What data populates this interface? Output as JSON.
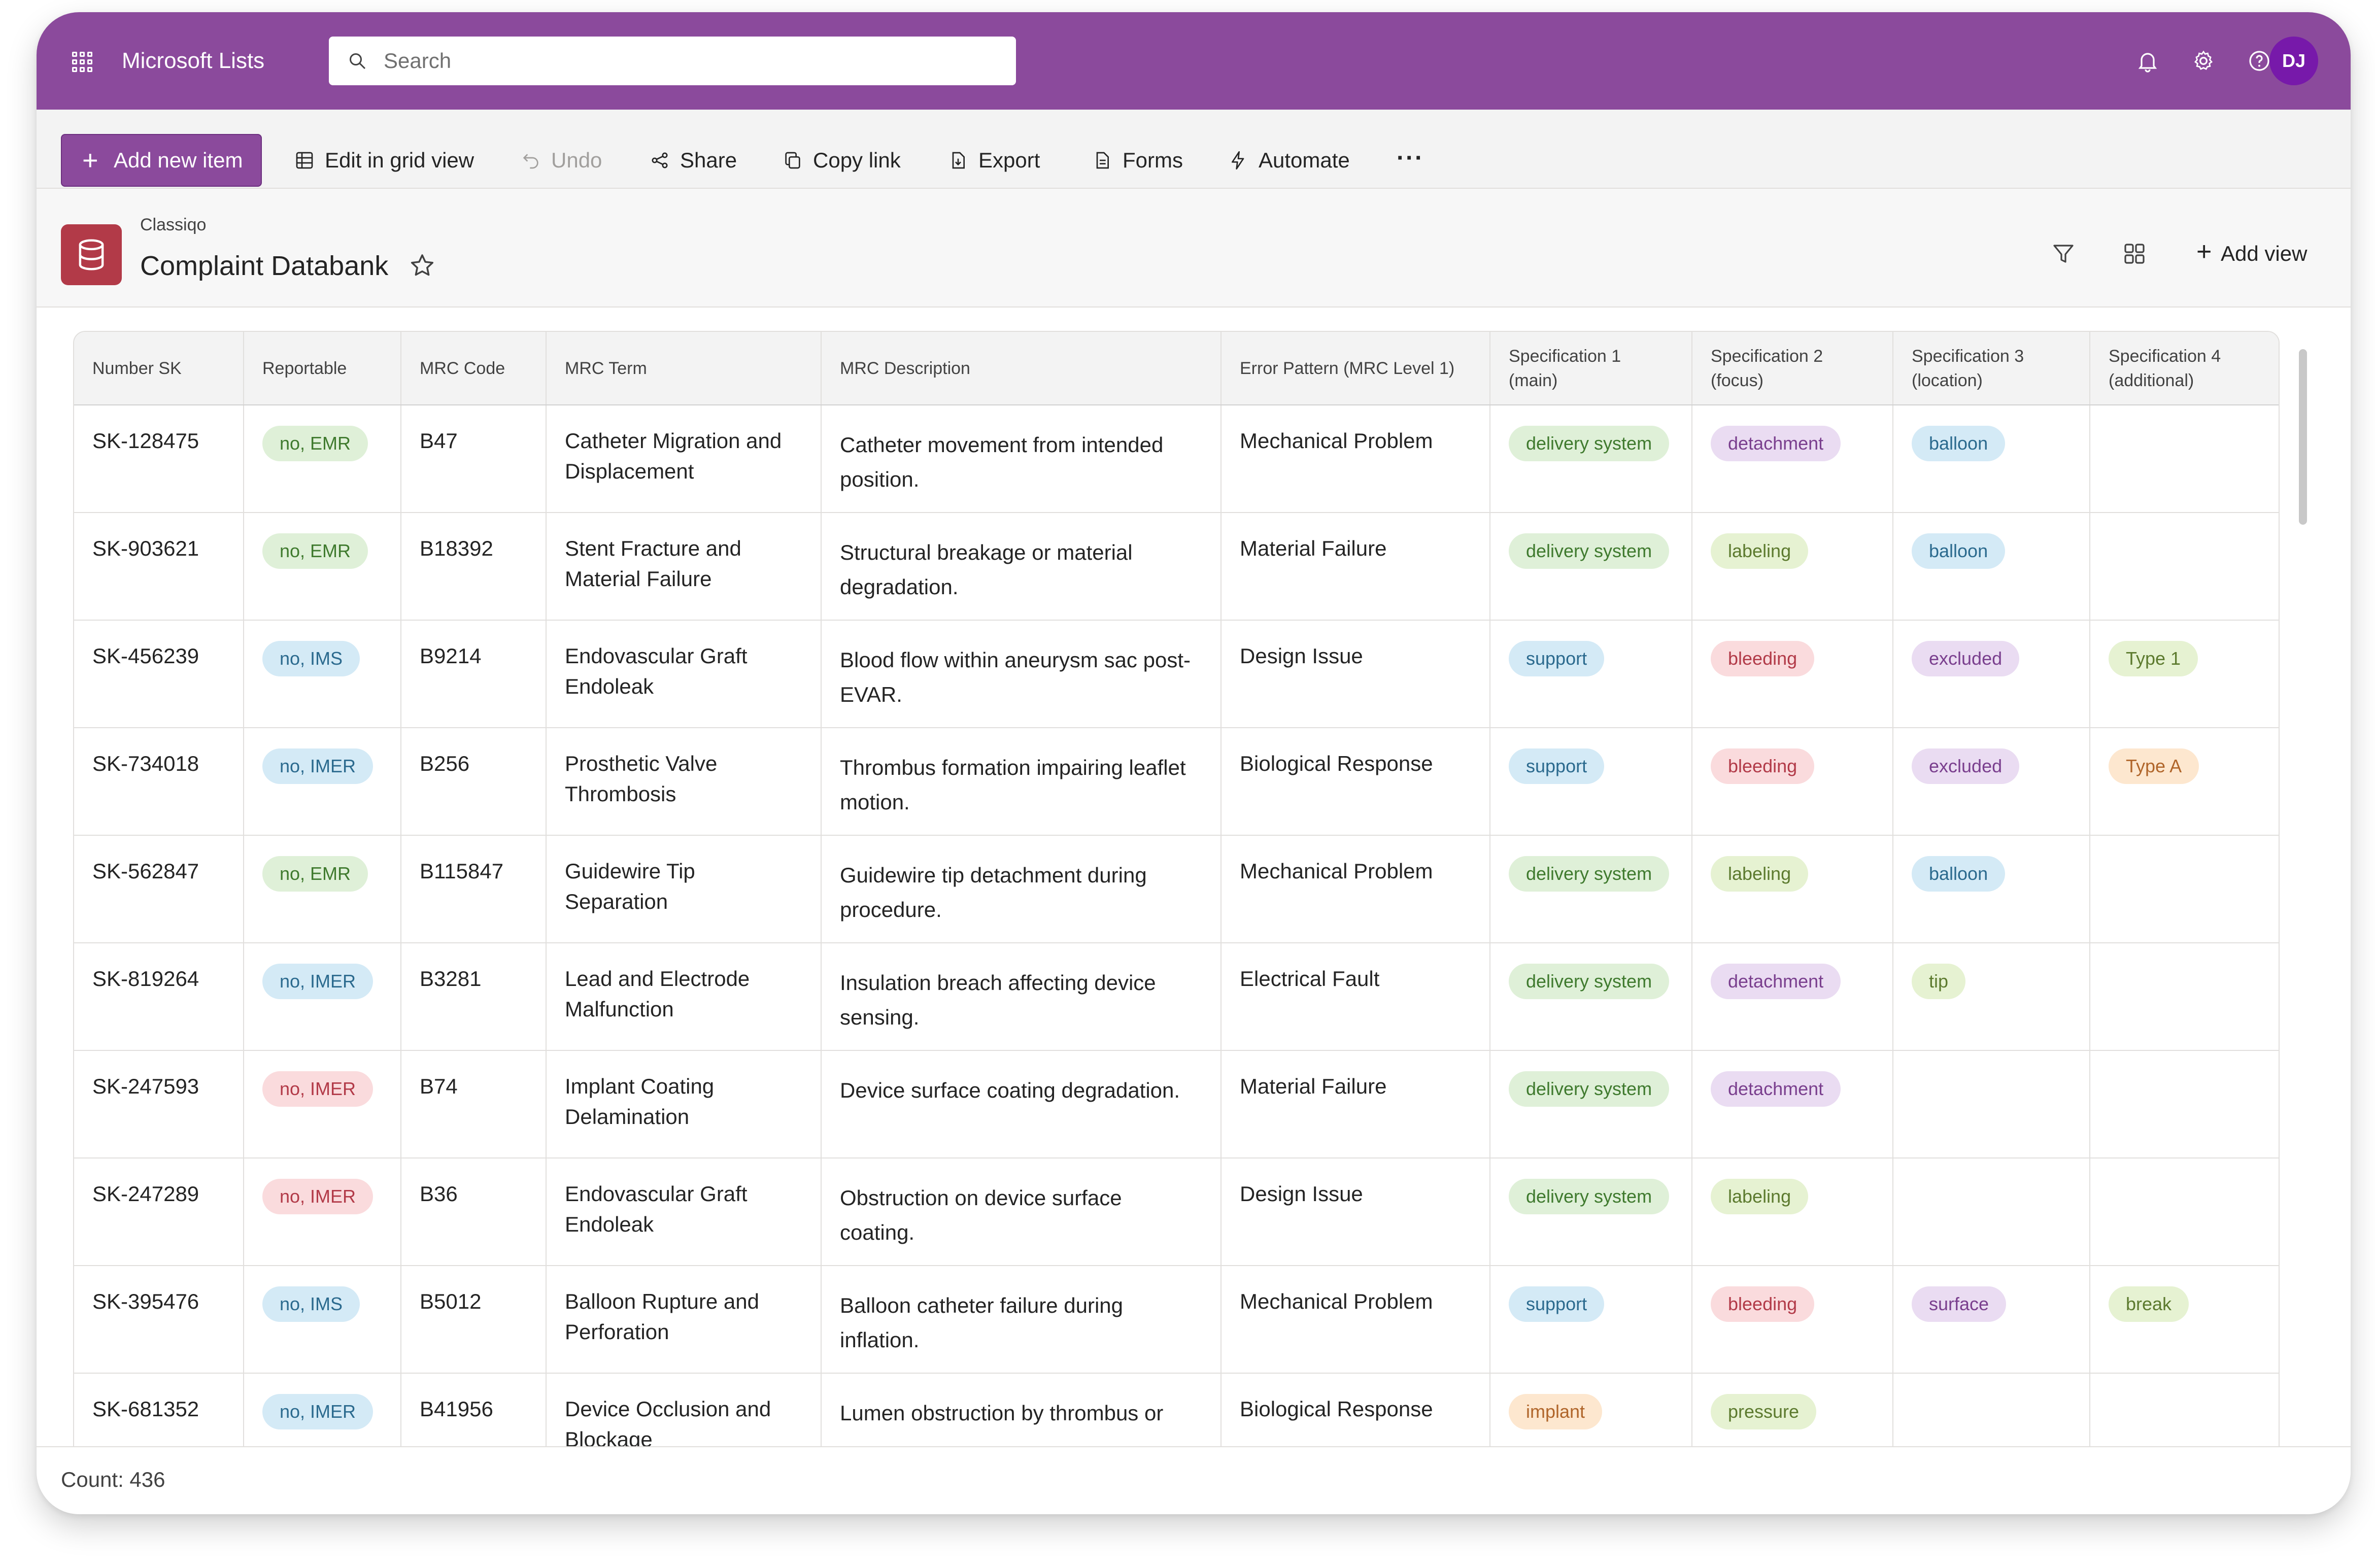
{
  "app": {
    "name": "Microsoft Lists",
    "user_initials": "DJ"
  },
  "search": {
    "placeholder": "Search"
  },
  "commands": {
    "add": "Add new item",
    "grid": "Edit in grid view",
    "undo": "Undo",
    "share": "Share",
    "copy": "Copy link",
    "export": "Export",
    "forms": "Forms",
    "automate": "Automate",
    "more": "···"
  },
  "list": {
    "parent": "Classiqo",
    "title": "Complaint Databank",
    "add_view": "Add view"
  },
  "colors": {
    "header": "#8b4a9c",
    "accent": "#8b4a9c",
    "list_icon": "#b23a48",
    "avatar": "#7719aa"
  },
  "pill_styles": {
    "green": {
      "bg": "#dff0d8",
      "fg": "#3f7a2e"
    },
    "blue": {
      "bg": "#d4eaf6",
      "fg": "#2b6a8e"
    },
    "red": {
      "bg": "#fadbdd",
      "fg": "#b23a48"
    },
    "purple": {
      "bg": "#eadcf2",
      "fg": "#7a3f8e"
    },
    "lime": {
      "bg": "#e6f2d2",
      "fg": "#5c7a2e"
    },
    "orange": {
      "bg": "#fde7cf",
      "fg": "#b0652a"
    }
  },
  "table": {
    "columns": [
      "Number SK",
      "Reportable",
      "MRC Code",
      "MRC Term",
      "MRC Description",
      "Error Pattern (MRC Level 1)",
      "Specification 1 (main)",
      "Specification 2 (focus)",
      "Specification 3 (location)",
      "Specification 4 (additional)"
    ],
    "rows": [
      {
        "sk": "SK-128475",
        "rep": {
          "text": "no, EMR",
          "c": "green"
        },
        "code": "B47",
        "term": "Catheter Migration and Displacement",
        "desc": "Catheter movement from intended position.",
        "pattern": "Mechanical Problem",
        "s1": {
          "text": "delivery system",
          "c": "green"
        },
        "s2": {
          "text": "detachment",
          "c": "purple"
        },
        "s3": {
          "text": "balloon",
          "c": "blue"
        },
        "s4": null
      },
      {
        "sk": "SK-903621",
        "rep": {
          "text": "no, EMR",
          "c": "green"
        },
        "code": "B18392",
        "term": "Stent Fracture and Material Failure",
        "desc": "Structural breakage or material degradation.",
        "pattern": "Material Failure",
        "s1": {
          "text": "delivery system",
          "c": "green"
        },
        "s2": {
          "text": "labeling",
          "c": "lime"
        },
        "s3": {
          "text": "balloon",
          "c": "blue"
        },
        "s4": null
      },
      {
        "sk": "SK-456239",
        "rep": {
          "text": "no, IMS",
          "c": "blue"
        },
        "code": "B9214",
        "term": "Endovascular Graft Endoleak",
        "desc": "Blood flow within aneurysm sac post-EVAR.",
        "pattern": "Design Issue",
        "s1": {
          "text": "support",
          "c": "blue"
        },
        "s2": {
          "text": "bleeding",
          "c": "red"
        },
        "s3": {
          "text": "excluded",
          "c": "purple"
        },
        "s4": {
          "text": "Type 1",
          "c": "lime"
        }
      },
      {
        "sk": "SK-734018",
        "rep": {
          "text": "no, IMER",
          "c": "blue"
        },
        "code": "B256",
        "term": "Prosthetic Valve Thrombosis",
        "desc": "Thrombus formation impairing leaflet motion.",
        "pattern": "Biological Response",
        "s1": {
          "text": "support",
          "c": "blue"
        },
        "s2": {
          "text": "bleeding",
          "c": "red"
        },
        "s3": {
          "text": "excluded",
          "c": "purple"
        },
        "s4": {
          "text": "Type A",
          "c": "orange"
        }
      },
      {
        "sk": "SK-562847",
        "rep": {
          "text": "no, EMR",
          "c": "green"
        },
        "code": "B115847",
        "term": "Guidewire Tip Separation",
        "desc": "Guidewire tip detachment during procedure.",
        "pattern": "Mechanical Problem",
        "s1": {
          "text": "delivery system",
          "c": "green"
        },
        "s2": {
          "text": "labeling",
          "c": "lime"
        },
        "s3": {
          "text": "balloon",
          "c": "blue"
        },
        "s4": null
      },
      {
        "sk": "SK-819264",
        "rep": {
          "text": "no, IMER",
          "c": "blue"
        },
        "code": "B3281",
        "term": "Lead and Electrode Malfunction",
        "desc": "Insulation breach affecting device sensing.",
        "pattern": "Electrical Fault",
        "s1": {
          "text": "delivery system",
          "c": "green"
        },
        "s2": {
          "text": "detachment",
          "c": "purple"
        },
        "s3": {
          "text": "tip",
          "c": "lime"
        },
        "s4": null
      },
      {
        "sk": "SK-247593",
        "rep": {
          "text": "no, IMER",
          "c": "red"
        },
        "code": "B74",
        "term": "Implant Coating Delamination",
        "desc": "Device surface coating degradation.",
        "pattern": "Material Failure",
        "s1": {
          "text": "delivery system",
          "c": "green"
        },
        "s2": {
          "text": "detachment",
          "c": "purple"
        },
        "s3": null,
        "s4": null
      },
      {
        "sk": "SK-247289",
        "rep": {
          "text": "no, IMER",
          "c": "red"
        },
        "code": "B36",
        "term": "Endovascular Graft Endoleak",
        "desc": "Obstruction on device surface coating.",
        "pattern": "Design Issue",
        "s1": {
          "text": "delivery system",
          "c": "green"
        },
        "s2": {
          "text": "labeling",
          "c": "lime"
        },
        "s3": null,
        "s4": null
      },
      {
        "sk": "SK-395476",
        "rep": {
          "text": "no, IMS",
          "c": "blue"
        },
        "code": "B5012",
        "term": "Balloon Rupture and Perforation",
        "desc": "Balloon catheter failure during inflation.",
        "pattern": "Mechanical Problem",
        "s1": {
          "text": "support",
          "c": "blue"
        },
        "s2": {
          "text": "bleeding",
          "c": "red"
        },
        "s3": {
          "text": "surface",
          "c": "purple"
        },
        "s4": {
          "text": "break",
          "c": "lime"
        }
      },
      {
        "sk": "SK-681352",
        "rep": {
          "text": "no, IMER",
          "c": "blue"
        },
        "code": "B41956",
        "term": "Device Occlusion and Blockage",
        "desc": "Lumen obstruction by thrombus or",
        "pattern": "Biological Response",
        "s1": {
          "text": "implant",
          "c": "orange"
        },
        "s2": {
          "text": "pressure",
          "c": "lime"
        },
        "s3": null,
        "s4": null
      }
    ]
  },
  "footer": {
    "count": "Count: 436"
  }
}
